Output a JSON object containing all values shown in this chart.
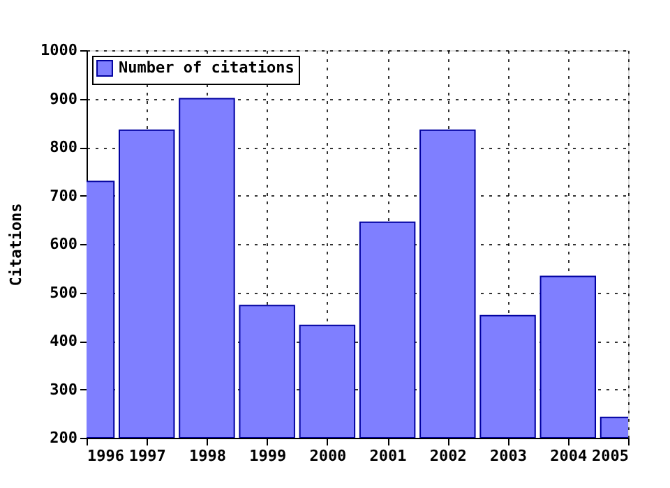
{
  "chart_data": {
    "type": "bar",
    "ylabel": "Citations",
    "x": [
      1996,
      1997,
      1998,
      1999,
      2000,
      2001,
      2002,
      2003,
      2004,
      2005
    ],
    "series": [
      {
        "name": "Number of citations",
        "color": "#7f7fff",
        "values": [
          729,
          835,
          900,
          473,
          432,
          645,
          835,
          452,
          533,
          242
        ]
      }
    ],
    "xlim": [
      1996,
      2005
    ],
    "xticks": [
      1996,
      1997,
      1998,
      1999,
      2000,
      2001,
      2002,
      2003,
      2004,
      2005
    ],
    "ylim": [
      200,
      1000
    ],
    "yticks": [
      200,
      300,
      400,
      500,
      600,
      700,
      800,
      900,
      1000
    ],
    "grid": true,
    "legend": "top left"
  }
}
